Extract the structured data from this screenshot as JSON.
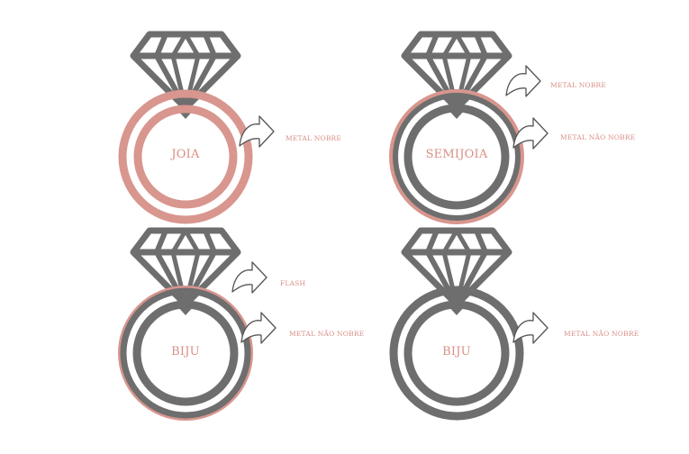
{
  "colors": {
    "gray": "#6e6e6e",
    "pink": "#d8968e",
    "text": "#d88f87",
    "white": "#ffffff"
  },
  "rings": [
    {
      "name": "joia",
      "center_label": "JOIA",
      "layers": [
        "METAL NOBRE"
      ],
      "style": "pink-double"
    },
    {
      "name": "semijoia",
      "center_label": "SEMIJOIA",
      "layers": [
        "METAL NOBRE",
        "METAL NÃO NOBRE"
      ],
      "style": "gray-with-pink-plating"
    },
    {
      "name": "biju-flash",
      "center_label": "BIJU",
      "layers": [
        "FLASH",
        "METAL  NÃO NOBRE"
      ],
      "style": "gray-with-thin-pink"
    },
    {
      "name": "biju",
      "center_label": "BIJU",
      "layers": [
        "METAL NÃO NOBRE"
      ],
      "style": "gray-double"
    }
  ]
}
